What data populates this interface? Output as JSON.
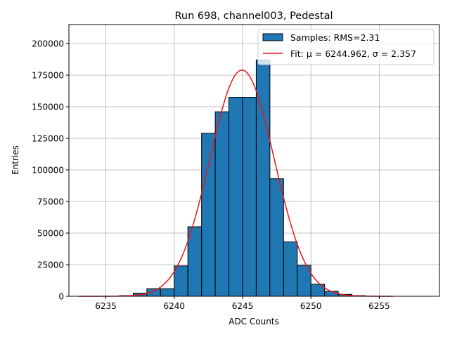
{
  "chart_data": {
    "type": "bar",
    "title": "Run 698, channel003, Pedestal",
    "xlabel": "ADC Counts",
    "ylabel": "Entries",
    "xlim": [
      6232.3,
      6259.4
    ],
    "ylim": [
      0,
      215000
    ],
    "xticks": [
      6235,
      6240,
      6245,
      6250,
      6255
    ],
    "yticks": [
      0,
      25000,
      50000,
      75000,
      100000,
      125000,
      150000,
      175000,
      200000
    ],
    "grid": true,
    "legend_position": "top-right",
    "bin_width": 1,
    "bins": [
      {
        "x0": 6236,
        "value": 500
      },
      {
        "x0": 6237,
        "value": 2500
      },
      {
        "x0": 6238,
        "value": 6000
      },
      {
        "x0": 6239,
        "value": 6000
      },
      {
        "x0": 6240,
        "value": 24000
      },
      {
        "x0": 6241,
        "value": 55000
      },
      {
        "x0": 6242,
        "value": 129000
      },
      {
        "x0": 6243,
        "value": 146000
      },
      {
        "x0": 6244,
        "value": 157500
      },
      {
        "x0": 6245,
        "value": 157500
      },
      {
        "x0": 6246,
        "value": 187000
      },
      {
        "x0": 6247,
        "value": 93000
      },
      {
        "x0": 6248,
        "value": 43000
      },
      {
        "x0": 6249,
        "value": 24500
      },
      {
        "x0": 6250,
        "value": 9500
      },
      {
        "x0": 6251,
        "value": 4000
      },
      {
        "x0": 6252,
        "value": 1500
      },
      {
        "x0": 6253,
        "value": 500
      }
    ],
    "fit": {
      "mu": 6244.962,
      "sigma": 2.357,
      "amplitude": 179000,
      "x_range": [
        6233,
        6256
      ]
    },
    "series": [
      {
        "name": "Samples: RMS=2.31",
        "color": "#1f77b4"
      },
      {
        "name": "Fit: μ = 6244.962, σ = 2.357",
        "color": "#e8161b"
      }
    ]
  }
}
